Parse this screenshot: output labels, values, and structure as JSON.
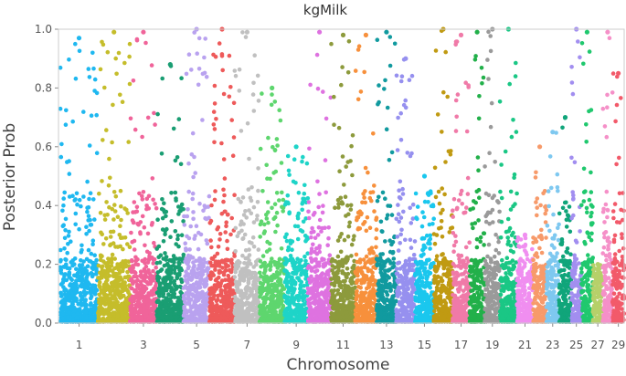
{
  "chart_data": {
    "type": "scatter",
    "subtype": "manhattan",
    "title": "kgMilk",
    "xlabel": "Chromosome",
    "ylabel": "Posterior Prob",
    "ylim": [
      0.0,
      1.0
    ],
    "yticks": [
      "0.0",
      "0.2",
      "0.4",
      "0.6",
      "0.8",
      "1.0"
    ],
    "xtick_labels": [
      "1",
      "3",
      "5",
      "7",
      "9",
      "11",
      "13",
      "15",
      "17",
      "19",
      "21",
      "23",
      "25",
      "27",
      "29"
    ],
    "grid": false,
    "series": [
      {
        "chromosome": 1,
        "color": "#1fb8f0",
        "max_prob": 0.97
      },
      {
        "chromosome": 2,
        "color": "#c5bd2b",
        "max_prob": 0.99
      },
      {
        "chromosome": 3,
        "color": "#f0649a",
        "max_prob": 0.99
      },
      {
        "chromosome": 4,
        "color": "#1a9e73",
        "max_prob": 0.88
      },
      {
        "chromosome": 5,
        "color": "#b9a2ef",
        "max_prob": 1.0
      },
      {
        "chromosome": 6,
        "color": "#ee5a5a",
        "max_prob": 1.0
      },
      {
        "chromosome": 7,
        "color": "#c0c0c0",
        "max_prob": 0.99
      },
      {
        "chromosome": 8,
        "color": "#5ed66e",
        "max_prob": 0.8
      },
      {
        "chromosome": 9,
        "color": "#1ed4c8",
        "max_prob": 0.6
      },
      {
        "chromosome": 10,
        "color": "#de72e0",
        "max_prob": 0.99
      },
      {
        "chromosome": 11,
        "color": "#8d9a3c",
        "max_prob": 0.98
      },
      {
        "chromosome": 12,
        "color": "#f7903c",
        "max_prob": 0.98
      },
      {
        "chromosome": 13,
        "color": "#119a9f",
        "max_prob": 0.99
      },
      {
        "chromosome": 14,
        "color": "#9690ef",
        "max_prob": 0.9
      },
      {
        "chromosome": 15,
        "color": "#1ac7ee",
        "max_prob": 0.5
      },
      {
        "chromosome": 16,
        "color": "#c09a12",
        "max_prob": 1.0
      },
      {
        "chromosome": 17,
        "color": "#f07aa8",
        "max_prob": 0.98
      },
      {
        "chromosome": 18,
        "color": "#22b04a",
        "max_prob": 0.99
      },
      {
        "chromosome": 19,
        "color": "#9a9a9a",
        "max_prob": 1.0
      },
      {
        "chromosome": 20,
        "color": "#1ac785",
        "max_prob": 1.0
      },
      {
        "chromosome": 21,
        "color": "#f08ef0",
        "max_prob": 0.3
      },
      {
        "chromosome": 22,
        "color": "#f79a6a",
        "max_prob": 0.6
      },
      {
        "chromosome": 23,
        "color": "#7ec8f0",
        "max_prob": 0.65
      },
      {
        "chromosome": 24,
        "color": "#10a57a",
        "max_prob": 0.7
      },
      {
        "chromosome": 25,
        "color": "#a28ef0",
        "max_prob": 1.0
      },
      {
        "chromosome": 26,
        "color": "#20c86e",
        "max_prob": 0.99
      },
      {
        "chromosome": 27,
        "color": "#b6d06a",
        "max_prob": 0.2
      },
      {
        "chromosome": 28,
        "color": "#f590c8",
        "max_prob": 0.99
      },
      {
        "chromosome": 29,
        "color": "#f25a6a",
        "max_prob": 0.85
      }
    ]
  }
}
